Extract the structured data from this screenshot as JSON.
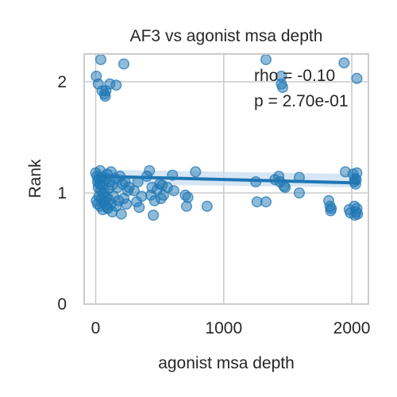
{
  "chart_data": {
    "type": "scatter",
    "title": "AF3 vs agonist msa depth",
    "xlabel": "agonist msa depth",
    "ylabel": "Rank",
    "xlim": [
      -90,
      2130
    ],
    "ylim": [
      0,
      2.25
    ],
    "x_ticks": [
      0,
      1000,
      2000
    ],
    "y_ticks": [
      0,
      1,
      2
    ],
    "grid": true,
    "annotations": [
      "rho = -0.10",
      "p = 2.70e-01"
    ],
    "colors": {
      "points": "#1f77b4",
      "fit_line": "#1f77b4",
      "band": "#c6dbef",
      "grid": "#cccccc",
      "axes": "#cccccc"
    },
    "regression": {
      "x": [
        0,
        2040
      ],
      "y": [
        1.15,
        1.09
      ],
      "ci_lower": [
        1.08,
        1.05
      ],
      "ci_upper": [
        1.21,
        1.17
      ]
    },
    "points": [
      {
        "x": 5,
        "y": 2.05
      },
      {
        "x": 20,
        "y": 1.98
      },
      {
        "x": 40,
        "y": 2.2
      },
      {
        "x": 50,
        "y": 1.92
      },
      {
        "x": 70,
        "y": 1.89
      },
      {
        "x": 80,
        "y": 1.92
      },
      {
        "x": 75,
        "y": 1.87
      },
      {
        "x": 110,
        "y": 1.98
      },
      {
        "x": 160,
        "y": 1.97
      },
      {
        "x": 220,
        "y": 2.16
      },
      {
        "x": 0,
        "y": 1.18
      },
      {
        "x": 10,
        "y": 1.15
      },
      {
        "x": 15,
        "y": 1.1
      },
      {
        "x": 20,
        "y": 1.05
      },
      {
        "x": 25,
        "y": 1.12
      },
      {
        "x": 30,
        "y": 1.08
      },
      {
        "x": 35,
        "y": 1.2
      },
      {
        "x": 40,
        "y": 1.02
      },
      {
        "x": 45,
        "y": 1.14
      },
      {
        "x": 50,
        "y": 1.06
      },
      {
        "x": 60,
        "y": 1.1
      },
      {
        "x": 70,
        "y": 1.0
      },
      {
        "x": 80,
        "y": 1.13
      },
      {
        "x": 90,
        "y": 1.17
      },
      {
        "x": 100,
        "y": 1.04
      },
      {
        "x": 110,
        "y": 1.1
      },
      {
        "x": 120,
        "y": 1.19
      },
      {
        "x": 130,
        "y": 1.07
      },
      {
        "x": 150,
        "y": 1.13
      },
      {
        "x": 170,
        "y": 1.05
      },
      {
        "x": 190,
        "y": 1.15
      },
      {
        "x": 210,
        "y": 1.08
      },
      {
        "x": 230,
        "y": 1.1
      },
      {
        "x": 250,
        "y": 1.02
      },
      {
        "x": 5,
        "y": 0.93
      },
      {
        "x": 15,
        "y": 0.9
      },
      {
        "x": 25,
        "y": 0.97
      },
      {
        "x": 35,
        "y": 0.88
      },
      {
        "x": 45,
        "y": 0.95
      },
      {
        "x": 55,
        "y": 0.85
      },
      {
        "x": 65,
        "y": 0.92
      },
      {
        "x": 75,
        "y": 0.89
      },
      {
        "x": 85,
        "y": 0.96
      },
      {
        "x": 95,
        "y": 0.86
      },
      {
        "x": 105,
        "y": 0.94
      },
      {
        "x": 120,
        "y": 0.9
      },
      {
        "x": 140,
        "y": 0.97
      },
      {
        "x": 160,
        "y": 0.88
      },
      {
        "x": 180,
        "y": 0.93
      },
      {
        "x": 200,
        "y": 0.81
      },
      {
        "x": 220,
        "y": 0.95
      },
      {
        "x": 240,
        "y": 0.9
      },
      {
        "x": 260,
        "y": 1.05
      },
      {
        "x": 60,
        "y": 0.99
      },
      {
        "x": 90,
        "y": 0.87
      },
      {
        "x": 130,
        "y": 0.83
      },
      {
        "x": 300,
        "y": 1.02
      },
      {
        "x": 320,
        "y": 0.92
      },
      {
        "x": 330,
        "y": 1.1
      },
      {
        "x": 340,
        "y": 0.87
      },
      {
        "x": 360,
        "y": 0.97
      },
      {
        "x": 400,
        "y": 1.15
      },
      {
        "x": 420,
        "y": 1.2
      },
      {
        "x": 430,
        "y": 0.98
      },
      {
        "x": 440,
        "y": 1.05
      },
      {
        "x": 450,
        "y": 0.8
      },
      {
        "x": 460,
        "y": 0.93
      },
      {
        "x": 480,
        "y": 1.03
      },
      {
        "x": 500,
        "y": 1.08
      },
      {
        "x": 510,
        "y": 0.95
      },
      {
        "x": 520,
        "y": 1.07
      },
      {
        "x": 530,
        "y": 0.98
      },
      {
        "x": 560,
        "y": 1.05
      },
      {
        "x": 600,
        "y": 1.16
      },
      {
        "x": 610,
        "y": 1.02
      },
      {
        "x": 700,
        "y": 0.98
      },
      {
        "x": 710,
        "y": 0.88
      },
      {
        "x": 720,
        "y": 0.96
      },
      {
        "x": 780,
        "y": 1.19
      },
      {
        "x": 870,
        "y": 0.88
      },
      {
        "x": 1250,
        "y": 1.1
      },
      {
        "x": 1260,
        "y": 0.92
      },
      {
        "x": 1330,
        "y": 0.92
      },
      {
        "x": 1330,
        "y": 2.2
      },
      {
        "x": 1400,
        "y": 1.12
      },
      {
        "x": 1430,
        "y": 1.15
      },
      {
        "x": 1440,
        "y": 1.1
      },
      {
        "x": 1450,
        "y": 2.05
      },
      {
        "x": 1450,
        "y": 1.98
      },
      {
        "x": 1460,
        "y": 1.95
      },
      {
        "x": 1470,
        "y": 1.06
      },
      {
        "x": 1480,
        "y": 1.05
      },
      {
        "x": 1590,
        "y": 1.14
      },
      {
        "x": 1590,
        "y": 1.0
      },
      {
        "x": 1820,
        "y": 0.93
      },
      {
        "x": 1830,
        "y": 0.88
      },
      {
        "x": 1835,
        "y": 0.84
      },
      {
        "x": 1840,
        "y": 0.86
      },
      {
        "x": 1940,
        "y": 2.17
      },
      {
        "x": 1950,
        "y": 1.19
      },
      {
        "x": 1980,
        "y": 0.85
      },
      {
        "x": 1990,
        "y": 0.82
      },
      {
        "x": 2010,
        "y": 1.17
      },
      {
        "x": 2020,
        "y": 1.1
      },
      {
        "x": 2025,
        "y": 1.13
      },
      {
        "x": 2030,
        "y": 1.08
      },
      {
        "x": 2035,
        "y": 1.12
      },
      {
        "x": 2040,
        "y": 1.18
      },
      {
        "x": 2040,
        "y": 2.03
      },
      {
        "x": 2020,
        "y": 0.88
      },
      {
        "x": 2025,
        "y": 0.8
      },
      {
        "x": 2035,
        "y": 0.83
      },
      {
        "x": 2040,
        "y": 0.86
      },
      {
        "x": 2045,
        "y": 0.81
      }
    ]
  }
}
